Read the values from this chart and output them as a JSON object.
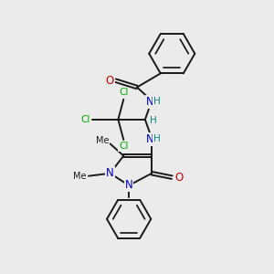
{
  "bg_color": "#ebebeb",
  "bond_color": "#1a1a1a",
  "bond_width": 1.4,
  "atom_colors": {
    "C": "#1a1a1a",
    "N": "#0000cc",
    "O": "#cc0000",
    "Cl": "#00aa00",
    "H": "#008888"
  },
  "font_size": 7.5
}
